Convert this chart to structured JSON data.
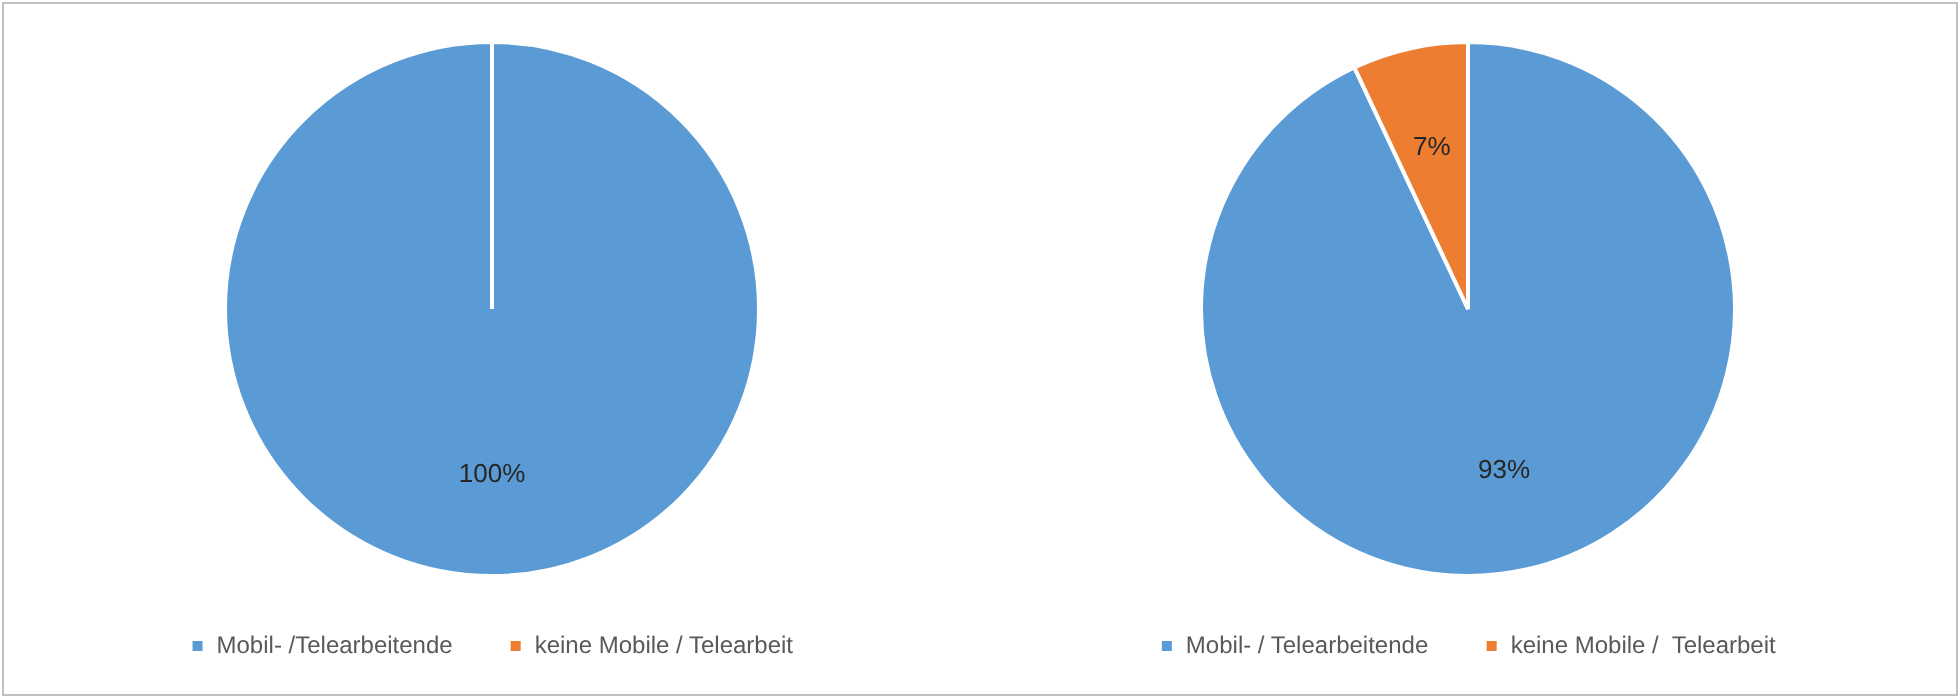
{
  "chart_data": [
    {
      "type": "pie",
      "categories": [
        "Mobil- /Telearbeitende",
        "keine Mobile / Telearbeit"
      ],
      "values": [
        100,
        0
      ],
      "colors": [
        "#5b9bd5",
        "#ed7d31"
      ],
      "value_labels": [
        "100%",
        null
      ],
      "legend": "bottom"
    },
    {
      "type": "pie",
      "categories": [
        "Mobil- / Telearbeitende",
        "keine Mobile /  Telearbeit"
      ],
      "values": [
        93,
        7
      ],
      "colors": [
        "#5b9bd5",
        "#ed7d31"
      ],
      "value_labels": [
        "93%",
        "7%"
      ],
      "legend": "bottom"
    }
  ]
}
